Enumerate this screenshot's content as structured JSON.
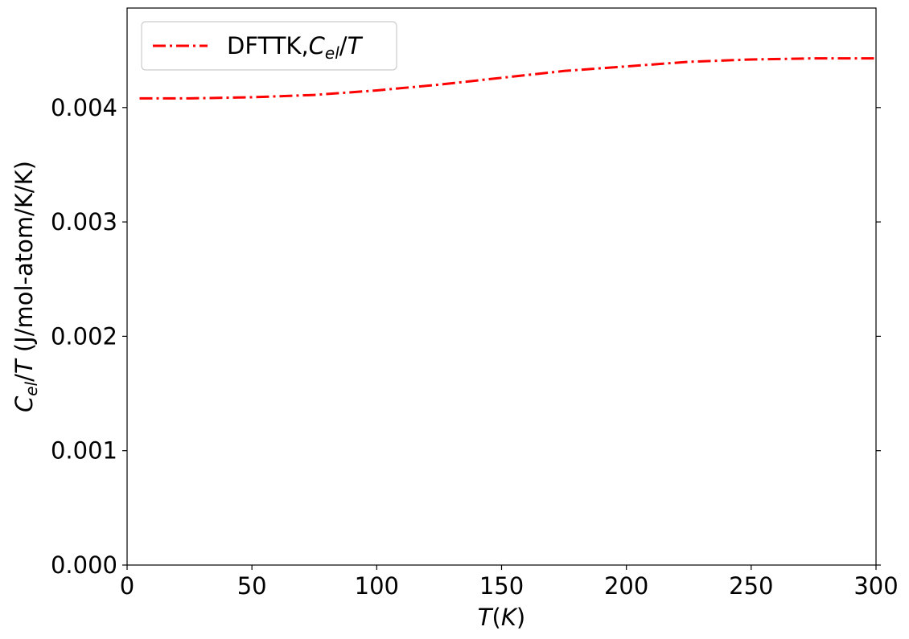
{
  "chart_data": {
    "type": "line",
    "xlabel": "T(K)",
    "ylabel": "C_el/T (J/mol-atom/K/K)",
    "xlim": [
      0,
      300
    ],
    "ylim": [
      0,
      0.00487
    ],
    "xticks": [
      0,
      50,
      100,
      150,
      200,
      250,
      300
    ],
    "xtick_labels": [
      "0",
      "50",
      "100",
      "150",
      "200",
      "250",
      "300"
    ],
    "yticks": [
      0,
      0.001,
      0.002,
      0.003,
      0.004
    ],
    "ytick_labels": [
      "0.000",
      "0.001",
      "0.002",
      "0.003",
      "0.004"
    ],
    "grid": false,
    "legend": {
      "position": "top-left"
    },
    "series": [
      {
        "name": "DFTTK,C_el/T",
        "color": "#ff0000",
        "line_style": "dash-dot",
        "x": [
          5,
          25,
          50,
          75,
          100,
          125,
          150,
          175,
          200,
          225,
          250,
          275,
          300
        ],
        "y": [
          0.00408,
          0.00408,
          0.00409,
          0.00411,
          0.00415,
          0.0042,
          0.00426,
          0.00432,
          0.00436,
          0.0044,
          0.00442,
          0.00443,
          0.00443
        ]
      }
    ]
  }
}
